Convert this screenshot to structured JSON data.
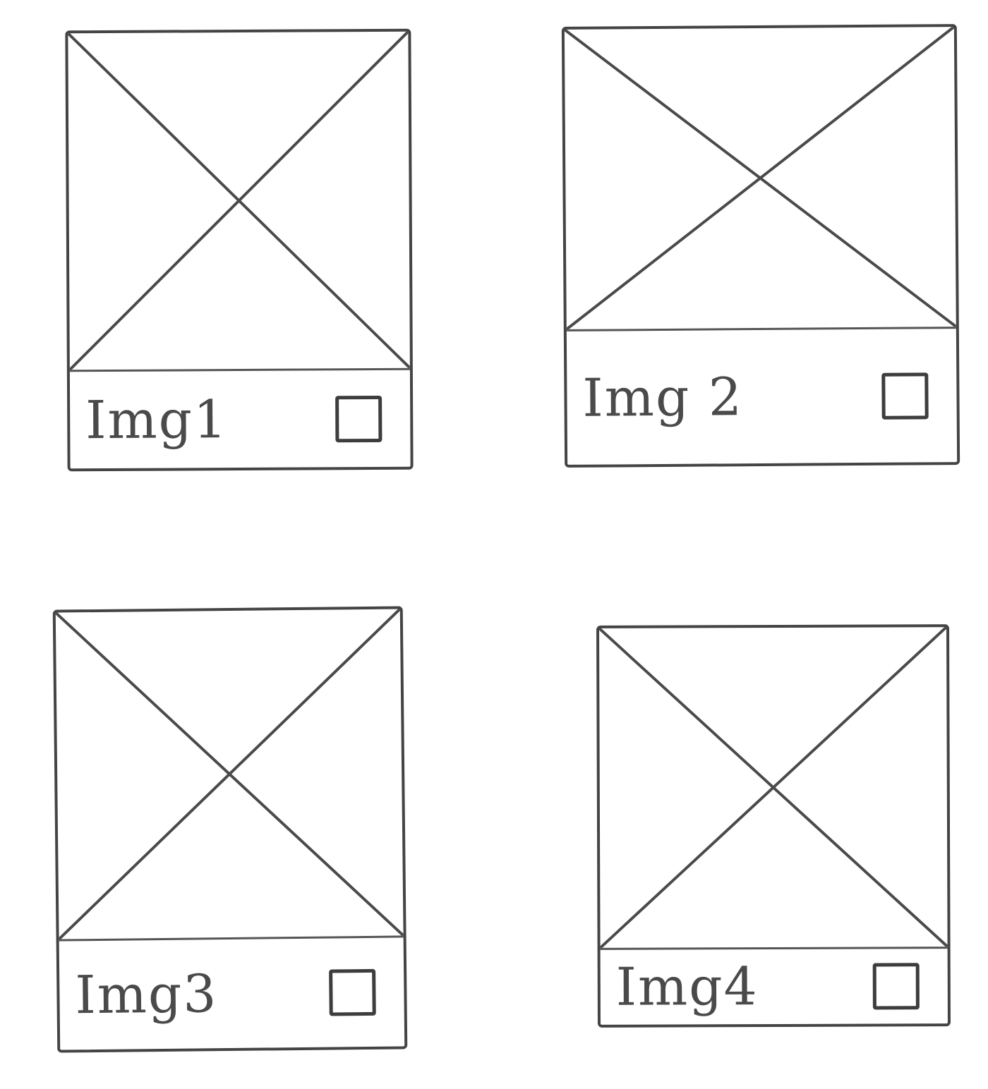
{
  "cards": [
    {
      "label": "Img1",
      "image_icon": "image-placeholder-icon",
      "checked": false
    },
    {
      "label": "Img 2",
      "image_icon": "image-placeholder-icon",
      "checked": false
    },
    {
      "label": "Img3",
      "image_icon": "image-placeholder-icon",
      "checked": false
    },
    {
      "label": "Img4",
      "image_icon": "image-placeholder-icon",
      "checked": false
    }
  ],
  "colors": {
    "stroke": "#444444",
    "background": "#ffffff"
  }
}
